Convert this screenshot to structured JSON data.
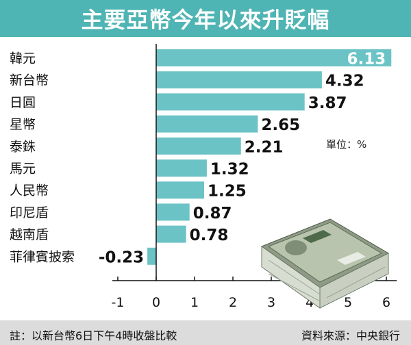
{
  "title": "主要亞幣今年以來升貶幅",
  "unit_label": "單位：%",
  "footnote": "註：以新台幣6日下午4時收盤比較",
  "source": "資料來源：中央銀行",
  "colors": {
    "accent": "#4fb4b4",
    "bar": "#6cc3c6",
    "footer": "#dcdcdc"
  },
  "chart_data": {
    "type": "bar",
    "orientation": "horizontal",
    "title": "主要亞幣今年以來升貶幅",
    "categories": [
      "韓元",
      "新台幣",
      "日圓",
      "星幣",
      "泰銖",
      "馬元",
      "人民幣",
      "印尼盾",
      "越南盾",
      "菲律賓披索"
    ],
    "values": [
      6.13,
      4.32,
      3.87,
      2.65,
      2.21,
      1.32,
      1.25,
      0.87,
      0.78,
      -0.23
    ],
    "value_labels": [
      "6.13",
      "4.32",
      "3.87",
      "2.65",
      "2.21",
      "1.32",
      "1.25",
      "0.87",
      "0.78",
      "-0.23"
    ],
    "xlim": [
      -1,
      6.2
    ],
    "x_ticks": [
      -1,
      0,
      1,
      2,
      3,
      4,
      5,
      6
    ],
    "x_tick_labels": [
      "-1",
      "0",
      "1",
      "2",
      "3",
      "4",
      "5",
      "6"
    ],
    "grid": false,
    "legend": "none",
    "unit": "%"
  }
}
